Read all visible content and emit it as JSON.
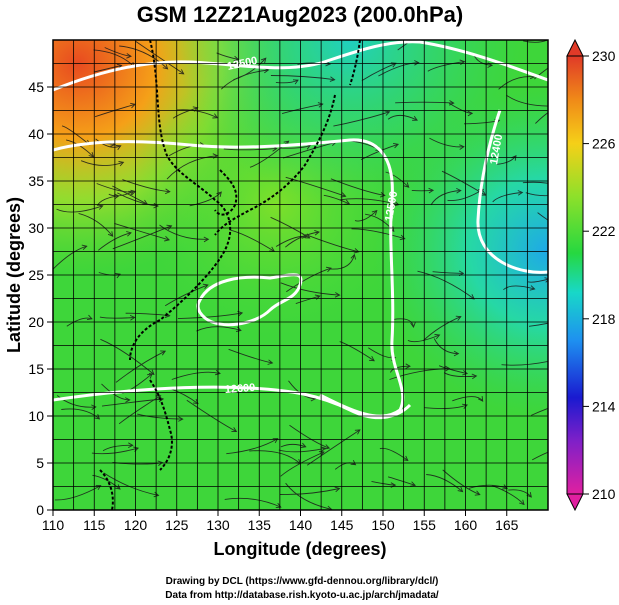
{
  "title": "GSM 12Z21Aug2023 (200.0hPa)",
  "xlabel": "Longitude (degrees)",
  "ylabel": "Latitude  (degrees)",
  "x_ticks": [
    "110",
    "115",
    "120",
    "125",
    "130",
    "135",
    "140",
    "145",
    "150",
    "155",
    "160",
    "165"
  ],
  "y_ticks": [
    "0",
    "5",
    "10",
    "15",
    "20",
    "25",
    "30",
    "35",
    "40",
    "45"
  ],
  "colorbar_ticks": [
    "230",
    "226",
    "222",
    "218",
    "214",
    "210"
  ],
  "contour_labels": [
    "12500",
    "12400",
    "12500",
    "12600"
  ],
  "credits": {
    "line1": "Drawing by DCL (https://www.gfd-dennou.org/library/dcl/)",
    "line2": "Data from http://database.rish.kyoto-u.ac.jp/arch/jmadata/"
  },
  "chart_data": {
    "type": "heatmap",
    "title": "GSM 12Z21Aug2023 (200.0hPa)",
    "xlabel": "Longitude (degrees)",
    "ylabel": "Latitude  (degrees)",
    "xlim": [
      110,
      170
    ],
    "ylim": [
      0,
      50
    ],
    "colorbar_range": [
      210,
      230
    ],
    "colormap": [
      "#e0209a",
      "#1a1acf",
      "#1ea0f0",
      "#18d8c8",
      "#2ed82e",
      "#9ae02a",
      "#f5c518",
      "#f08a18",
      "#e03a28"
    ],
    "grid": true,
    "overlay": "streamlines and height contours"
  }
}
